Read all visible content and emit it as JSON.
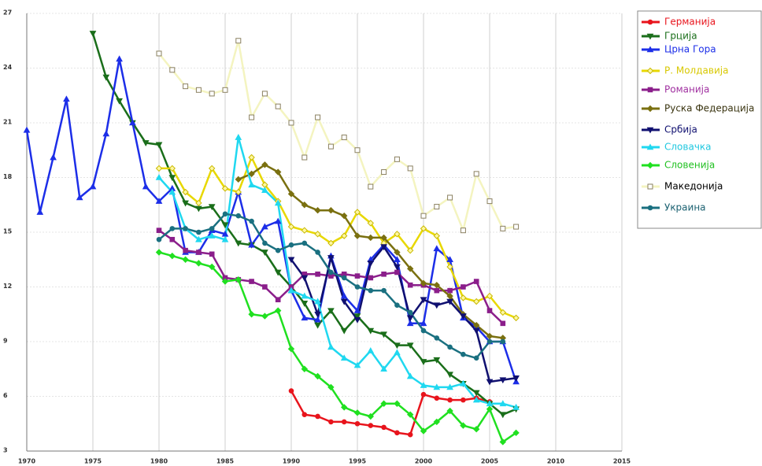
{
  "chart_data": {
    "type": "line",
    "x": [
      1970,
      1971,
      1972,
      1973,
      1974,
      1975,
      1976,
      1977,
      1978,
      1979,
      1980,
      1981,
      1982,
      1983,
      1984,
      1985,
      1986,
      1987,
      1988,
      1989,
      1990,
      1991,
      1992,
      1993,
      1994,
      1995,
      1996,
      1997,
      1998,
      1999,
      2000,
      2001,
      2002,
      2003,
      2004,
      2005,
      2006,
      2007
    ],
    "xlim": [
      1970,
      2015
    ],
    "xticks": [
      1970,
      1975,
      1980,
      1985,
      1990,
      1995,
      2000,
      2005,
      2010,
      2015
    ],
    "ylim": [
      3,
      27
    ],
    "yticks": [
      3,
      6,
      9,
      12,
      15,
      18,
      21,
      24,
      27
    ],
    "grid": true,
    "legend": "right",
    "series": [
      {
        "name": "Германија",
        "color": "#e8141c",
        "marker": "circle",
        "values": [
          null,
          null,
          null,
          null,
          null,
          null,
          null,
          null,
          null,
          null,
          null,
          null,
          null,
          null,
          null,
          null,
          null,
          null,
          null,
          null,
          6.3,
          5.0,
          4.9,
          4.6,
          4.6,
          4.5,
          4.4,
          4.3,
          4.0,
          3.9,
          6.1,
          5.9,
          5.8,
          5.8,
          5.9,
          5.7,
          null,
          null
        ]
      },
      {
        "name": "Грција",
        "color": "#1a6e1a",
        "marker": "triangle-down",
        "values": [
          null,
          null,
          null,
          null,
          null,
          25.9,
          23.5,
          22.2,
          21.0,
          19.9,
          19.8,
          18.0,
          16.6,
          16.3,
          16.4,
          15.4,
          14.4,
          14.3,
          13.9,
          12.8,
          12.0,
          11.1,
          9.9,
          10.7,
          9.6,
          10.4,
          9.6,
          9.4,
          8.8,
          8.8,
          7.9,
          8.0,
          7.2,
          6.7,
          6.2,
          5.6,
          5.0,
          5.3
        ]
      },
      {
        "name": "Црна Гора",
        "color": "#1c2ee8",
        "marker": "triangle-up",
        "values": [
          20.6,
          16.1,
          19.1,
          22.3,
          16.9,
          17.5,
          20.4,
          24.5,
          21.0,
          17.5,
          16.7,
          17.4,
          13.9,
          13.9,
          15.1,
          14.9,
          17.2,
          14.3,
          15.3,
          15.6,
          11.8,
          10.3,
          10.2,
          13.7,
          11.5,
          10.7,
          13.5,
          14.3,
          13.5,
          10.0,
          10.0,
          14.1,
          13.5,
          10.3,
          9.8,
          9.0,
          9.0,
          6.8
        ]
      },
      {
        "name": "Р. Молдавија",
        "color": "#e8d800",
        "marker": "diamond",
        "values": [
          null,
          null,
          null,
          null,
          null,
          null,
          null,
          null,
          null,
          null,
          18.5,
          18.5,
          17.2,
          16.6,
          18.5,
          17.4,
          17.2,
          19.1,
          17.6,
          16.7,
          15.3,
          15.1,
          14.9,
          14.4,
          14.8,
          16.1,
          15.5,
          14.4,
          14.9,
          14.0,
          15.2,
          14.8,
          13.1,
          11.4,
          11.2,
          11.5,
          10.6,
          10.3
        ]
      },
      {
        "name": "Романија",
        "color": "#8b1e8b",
        "marker": "square",
        "values": [
          null,
          null,
          null,
          null,
          null,
          null,
          null,
          null,
          null,
          null,
          15.1,
          14.6,
          14.0,
          13.9,
          13.8,
          12.5,
          12.4,
          12.3,
          12.0,
          11.3,
          12.0,
          12.7,
          12.7,
          12.6,
          12.7,
          12.6,
          12.5,
          12.7,
          12.8,
          12.1,
          12.1,
          11.8,
          11.8,
          12.0,
          12.3,
          10.7,
          10.0,
          null
        ]
      },
      {
        "name": "Руска Федерација",
        "color": "#7a7010",
        "marker": "diamond",
        "values": [
          null,
          null,
          null,
          null,
          null,
          null,
          null,
          null,
          null,
          null,
          null,
          null,
          null,
          null,
          null,
          null,
          17.9,
          18.2,
          18.7,
          18.3,
          17.1,
          16.5,
          16.2,
          16.2,
          15.9,
          14.8,
          14.7,
          14.7,
          13.9,
          13.0,
          12.2,
          12.1,
          11.5,
          10.5,
          9.9,
          9.3,
          9.2,
          null
        ]
      },
      {
        "name": "Србија",
        "color": "#101070",
        "marker": "triangle-down",
        "values": [
          null,
          null,
          null,
          null,
          null,
          null,
          null,
          null,
          null,
          null,
          null,
          null,
          null,
          null,
          null,
          null,
          null,
          null,
          null,
          null,
          13.5,
          12.5,
          10.5,
          13.6,
          11.2,
          10.2,
          13.3,
          14.2,
          13.1,
          10.3,
          11.3,
          11.0,
          11.2,
          10.4,
          9.6,
          6.8,
          6.9,
          7.0
        ]
      },
      {
        "name": "Словачка",
        "color": "#20d8f0",
        "marker": "triangle-up",
        "values": [
          null,
          null,
          null,
          null,
          null,
          null,
          null,
          null,
          null,
          null,
          18.0,
          17.2,
          15.2,
          14.6,
          14.8,
          14.6,
          20.2,
          17.6,
          17.3,
          16.6,
          11.8,
          11.5,
          11.2,
          8.7,
          8.1,
          7.7,
          8.5,
          7.5,
          8.4,
          7.1,
          6.6,
          6.5,
          6.5,
          6.7,
          5.8,
          5.6,
          5.6,
          5.4
        ]
      },
      {
        "name": "Словенија",
        "color": "#20e020",
        "marker": "diamond",
        "values": [
          null,
          null,
          null,
          null,
          null,
          null,
          null,
          null,
          null,
          null,
          13.9,
          13.7,
          13.5,
          13.3,
          13.1,
          12.3,
          12.4,
          10.5,
          10.4,
          10.7,
          8.6,
          7.5,
          7.1,
          6.5,
          5.4,
          5.1,
          4.9,
          5.6,
          5.6,
          5.0,
          4.1,
          4.6,
          5.2,
          4.4,
          4.2,
          5.3,
          3.5,
          4.0
        ]
      },
      {
        "name": "Македонија",
        "color": "#f4f4c0",
        "marker": "square-open",
        "values": [
          null,
          null,
          null,
          null,
          null,
          null,
          null,
          null,
          null,
          null,
          24.8,
          23.9,
          23.0,
          22.8,
          22.6,
          22.8,
          25.5,
          21.3,
          22.6,
          21.9,
          21.0,
          19.1,
          21.3,
          19.7,
          20.2,
          19.5,
          17.5,
          18.3,
          19.0,
          18.5,
          15.9,
          16.4,
          16.9,
          15.1,
          18.2,
          16.7,
          15.2,
          15.3
        ]
      },
      {
        "name": "Украина",
        "color": "#1a7080",
        "marker": "circle",
        "values": [
          null,
          null,
          null,
          null,
          null,
          null,
          null,
          null,
          null,
          null,
          14.6,
          15.2,
          15.2,
          15.0,
          15.2,
          16.0,
          15.9,
          15.6,
          14.4,
          14.0,
          14.3,
          14.4,
          13.9,
          12.8,
          12.5,
          12.0,
          11.8,
          11.8,
          11.0,
          10.6,
          9.6,
          9.2,
          8.7,
          8.3,
          8.1,
          9.0,
          9.0,
          null
        ]
      }
    ]
  }
}
